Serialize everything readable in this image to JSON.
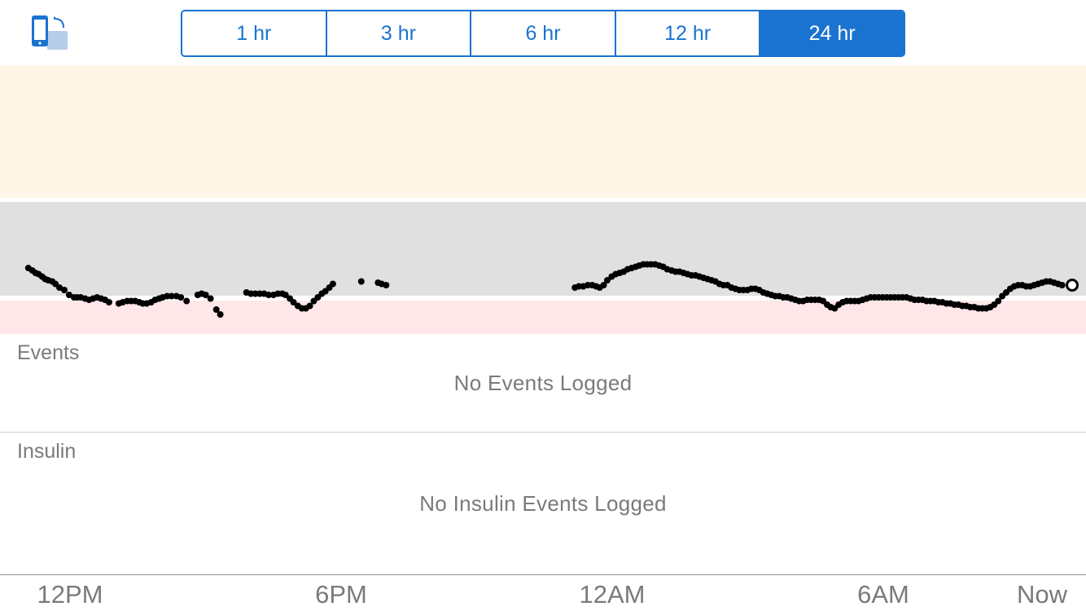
{
  "toolbar": {
    "rotate_icon": "rotate-device-icon",
    "segments": [
      {
        "label": "1 hr",
        "selected": false
      },
      {
        "label": "3 hr",
        "selected": false
      },
      {
        "label": "6 hr",
        "selected": false
      },
      {
        "label": "12 hr",
        "selected": false
      },
      {
        "label": "24 hr",
        "selected": true
      }
    ]
  },
  "colors": {
    "accent": "#1a73d0",
    "high_band": "#fff6e8",
    "target_band": "#e0e0e0",
    "low_band": "#ffe6e8",
    "point": "#000000"
  },
  "events": {
    "label": "Events",
    "empty_message": "No Events Logged"
  },
  "insulin": {
    "label": "Insulin",
    "empty_message": "No Insulin Events Logged"
  },
  "chart_data": {
    "type": "scatter",
    "x_unit": "hours before now",
    "x_range": [
      -24.5,
      0
    ],
    "y_range": [
      0,
      1
    ],
    "bands": [
      "high",
      "target",
      "low"
    ],
    "x_ticks": [
      "12PM",
      "6PM",
      "12AM",
      "6AM",
      "Now"
    ],
    "x_tick_values": [
      -22.0,
      -16.0,
      -10.0,
      -4.0,
      0
    ],
    "latest_point": {
      "x": 0.0,
      "y": 0.4
    },
    "points": [
      [
        -23.86,
        0.54
      ],
      [
        -23.77,
        0.52
      ],
      [
        -23.7,
        0.5
      ],
      [
        -23.63,
        0.49
      ],
      [
        -23.55,
        0.47
      ],
      [
        -23.48,
        0.45
      ],
      [
        -23.41,
        0.44
      ],
      [
        -23.32,
        0.43
      ],
      [
        -23.25,
        0.41
      ],
      [
        -23.16,
        0.38
      ],
      [
        -23.05,
        0.36
      ],
      [
        -22.94,
        0.32
      ],
      [
        -22.83,
        0.3
      ],
      [
        -22.76,
        0.3
      ],
      [
        -22.68,
        0.3
      ],
      [
        -22.58,
        0.29
      ],
      [
        -22.49,
        0.28
      ],
      [
        -22.4,
        0.29
      ],
      [
        -22.31,
        0.3
      ],
      [
        -22.22,
        0.29
      ],
      [
        -22.13,
        0.28
      ],
      [
        -22.04,
        0.26
      ],
      [
        -21.82,
        0.25
      ],
      [
        -21.73,
        0.26
      ],
      [
        -21.63,
        0.27
      ],
      [
        -21.54,
        0.27
      ],
      [
        -21.45,
        0.27
      ],
      [
        -21.36,
        0.26
      ],
      [
        -21.28,
        0.25
      ],
      [
        -21.19,
        0.25
      ],
      [
        -21.09,
        0.26
      ],
      [
        -21.0,
        0.28
      ],
      [
        -20.91,
        0.29
      ],
      [
        -20.83,
        0.3
      ],
      [
        -20.73,
        0.31
      ],
      [
        -20.63,
        0.31
      ],
      [
        -20.52,
        0.31
      ],
      [
        -20.42,
        0.3
      ],
      [
        -20.29,
        0.27
      ],
      [
        -20.04,
        0.32
      ],
      [
        -19.95,
        0.33
      ],
      [
        -19.86,
        0.32
      ],
      [
        -19.75,
        0.29
      ],
      [
        -19.62,
        0.2
      ],
      [
        -19.53,
        0.16
      ],
      [
        -18.94,
        0.34
      ],
      [
        -18.84,
        0.33
      ],
      [
        -18.74,
        0.33
      ],
      [
        -18.64,
        0.33
      ],
      [
        -18.54,
        0.33
      ],
      [
        -18.44,
        0.32
      ],
      [
        -18.33,
        0.32
      ],
      [
        -18.23,
        0.33
      ],
      [
        -18.13,
        0.33
      ],
      [
        -18.06,
        0.32
      ],
      [
        -17.96,
        0.29
      ],
      [
        -17.88,
        0.26
      ],
      [
        -17.78,
        0.23
      ],
      [
        -17.69,
        0.21
      ],
      [
        -17.6,
        0.21
      ],
      [
        -17.51,
        0.23
      ],
      [
        -17.42,
        0.27
      ],
      [
        -17.33,
        0.3
      ],
      [
        -17.24,
        0.33
      ],
      [
        -17.16,
        0.35
      ],
      [
        -17.07,
        0.38
      ],
      [
        -16.99,
        0.41
      ],
      [
        -16.35,
        0.43
      ],
      [
        -15.97,
        0.42
      ],
      [
        -15.89,
        0.41
      ],
      [
        -15.79,
        0.4
      ],
      [
        -11.53,
        0.38
      ],
      [
        -11.44,
        0.39
      ],
      [
        -11.34,
        0.39
      ],
      [
        -11.24,
        0.4
      ],
      [
        -11.14,
        0.4
      ],
      [
        -11.05,
        0.39
      ],
      [
        -10.97,
        0.38
      ],
      [
        -10.88,
        0.4
      ],
      [
        -10.8,
        0.44
      ],
      [
        -10.7,
        0.47
      ],
      [
        -10.61,
        0.49
      ],
      [
        -10.52,
        0.5
      ],
      [
        -10.43,
        0.51
      ],
      [
        -10.34,
        0.53
      ],
      [
        -10.25,
        0.54
      ],
      [
        -10.16,
        0.55
      ],
      [
        -10.08,
        0.56
      ],
      [
        -9.99,
        0.57
      ],
      [
        -9.9,
        0.57
      ],
      [
        -9.81,
        0.57
      ],
      [
        -9.72,
        0.57
      ],
      [
        -9.63,
        0.56
      ],
      [
        -9.54,
        0.55
      ],
      [
        -9.45,
        0.53
      ],
      [
        -9.35,
        0.52
      ],
      [
        -9.26,
        0.51
      ],
      [
        -9.17,
        0.51
      ],
      [
        -9.08,
        0.5
      ],
      [
        -8.99,
        0.49
      ],
      [
        -8.9,
        0.48
      ],
      [
        -8.81,
        0.48
      ],
      [
        -8.72,
        0.47
      ],
      [
        -8.63,
        0.46
      ],
      [
        -8.54,
        0.45
      ],
      [
        -8.45,
        0.44
      ],
      [
        -8.36,
        0.43
      ],
      [
        -8.27,
        0.41
      ],
      [
        -8.18,
        0.4
      ],
      [
        -8.09,
        0.4
      ],
      [
        -8.0,
        0.38
      ],
      [
        -7.91,
        0.37
      ],
      [
        -7.82,
        0.36
      ],
      [
        -7.73,
        0.36
      ],
      [
        -7.64,
        0.36
      ],
      [
        -7.55,
        0.37
      ],
      [
        -7.46,
        0.37
      ],
      [
        -7.37,
        0.36
      ],
      [
        -7.28,
        0.34
      ],
      [
        -7.19,
        0.33
      ],
      [
        -7.1,
        0.32
      ],
      [
        -7.01,
        0.31
      ],
      [
        -6.92,
        0.31
      ],
      [
        -6.83,
        0.3
      ],
      [
        -6.74,
        0.3
      ],
      [
        -6.65,
        0.29
      ],
      [
        -6.56,
        0.28
      ],
      [
        -6.47,
        0.27
      ],
      [
        -6.38,
        0.27
      ],
      [
        -6.29,
        0.28
      ],
      [
        -6.2,
        0.28
      ],
      [
        -6.11,
        0.28
      ],
      [
        -6.02,
        0.28
      ],
      [
        -5.93,
        0.27
      ],
      [
        -5.84,
        0.24
      ],
      [
        -5.76,
        0.22
      ],
      [
        -5.67,
        0.21
      ],
      [
        -5.58,
        0.24
      ],
      [
        -5.49,
        0.26
      ],
      [
        -5.4,
        0.27
      ],
      [
        -5.31,
        0.27
      ],
      [
        -5.22,
        0.27
      ],
      [
        -5.13,
        0.27
      ],
      [
        -5.04,
        0.28
      ],
      [
        -4.95,
        0.29
      ],
      [
        -4.86,
        0.3
      ],
      [
        -4.77,
        0.3
      ],
      [
        -4.68,
        0.3
      ],
      [
        -4.59,
        0.3
      ],
      [
        -4.5,
        0.3
      ],
      [
        -4.41,
        0.3
      ],
      [
        -4.32,
        0.3
      ],
      [
        -4.23,
        0.3
      ],
      [
        -4.14,
        0.3
      ],
      [
        -4.05,
        0.3
      ],
      [
        -3.96,
        0.29
      ],
      [
        -3.87,
        0.28
      ],
      [
        -3.78,
        0.28
      ],
      [
        -3.69,
        0.28
      ],
      [
        -3.6,
        0.27
      ],
      [
        -3.51,
        0.27
      ],
      [
        -3.42,
        0.27
      ],
      [
        -3.33,
        0.26
      ],
      [
        -3.24,
        0.26
      ],
      [
        -3.15,
        0.25
      ],
      [
        -3.06,
        0.25
      ],
      [
        -2.97,
        0.24
      ],
      [
        -2.88,
        0.24
      ],
      [
        -2.79,
        0.23
      ],
      [
        -2.7,
        0.23
      ],
      [
        -2.61,
        0.22
      ],
      [
        -2.52,
        0.22
      ],
      [
        -2.43,
        0.21
      ],
      [
        -2.34,
        0.21
      ],
      [
        -2.25,
        0.21
      ],
      [
        -2.16,
        0.22
      ],
      [
        -2.07,
        0.24
      ],
      [
        -1.98,
        0.27
      ],
      [
        -1.89,
        0.31
      ],
      [
        -1.8,
        0.34
      ],
      [
        -1.71,
        0.37
      ],
      [
        -1.62,
        0.39
      ],
      [
        -1.53,
        0.4
      ],
      [
        -1.44,
        0.4
      ],
      [
        -1.35,
        0.39
      ],
      [
        -1.26,
        0.39
      ],
      [
        -1.17,
        0.4
      ],
      [
        -1.08,
        0.41
      ],
      [
        -0.99,
        0.42
      ],
      [
        -0.9,
        0.43
      ],
      [
        -0.81,
        0.43
      ],
      [
        -0.72,
        0.42
      ],
      [
        -0.63,
        0.41
      ],
      [
        -0.54,
        0.4
      ]
    ]
  }
}
